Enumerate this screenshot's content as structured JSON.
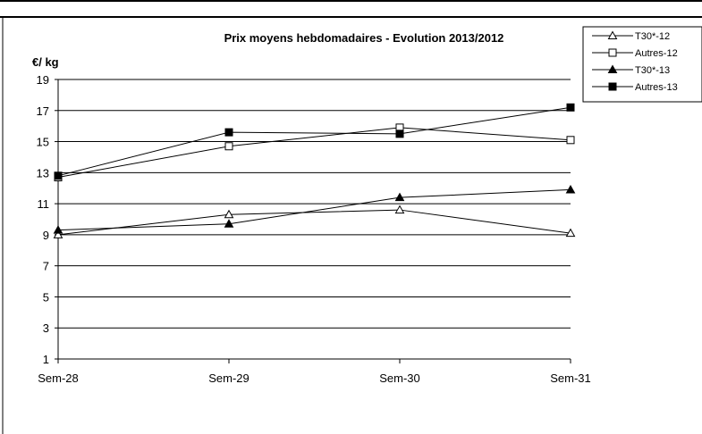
{
  "chart_data": {
    "type": "line",
    "title": "Prix moyens hebdomadaires - Evolution  2013/2012",
    "ylabel": "€/ kg",
    "xlabel": "",
    "categories": [
      "Sem-28",
      "Sem-29",
      "Sem-30",
      "Sem-31"
    ],
    "yticks": [
      "1",
      "3",
      "5",
      "7",
      "9",
      "11",
      "13",
      "15",
      "17",
      "19"
    ],
    "ylim": [
      1,
      19
    ],
    "grid": "horizontal",
    "legend_position": "top-right",
    "series": [
      {
        "name": "T30*-12",
        "marker": "triangle-open",
        "values": [
          9.0,
          10.3,
          10.6,
          9.1
        ]
      },
      {
        "name": "Autres-12",
        "marker": "square-open",
        "values": [
          12.7,
          14.7,
          15.9,
          15.1
        ]
      },
      {
        "name": "T30*-13",
        "marker": "triangle-filled",
        "values": [
          9.3,
          9.7,
          11.4,
          11.9
        ]
      },
      {
        "name": "Autres-13",
        "marker": "square-filled",
        "values": [
          12.8,
          15.6,
          15.5,
          17.2
        ]
      }
    ],
    "colors": {
      "line": "#000000",
      "grid": "#000000",
      "background": "#ffffff"
    }
  }
}
